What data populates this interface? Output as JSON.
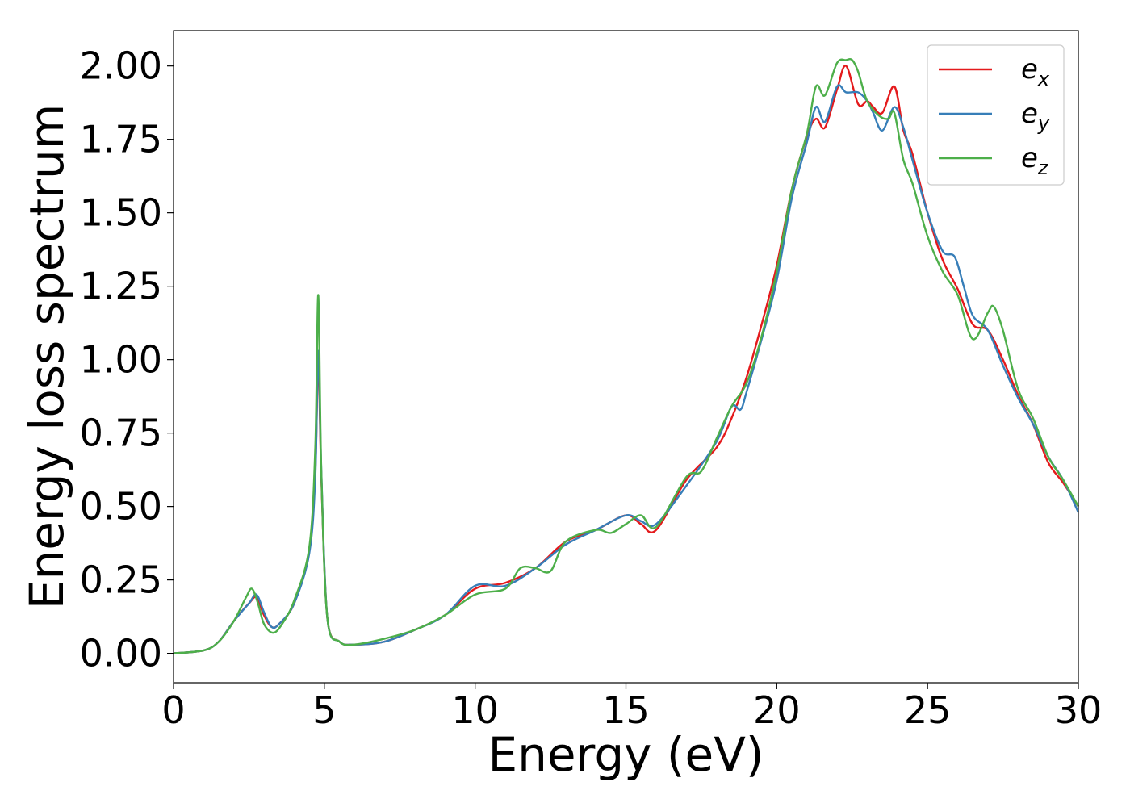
{
  "chart_data": {
    "type": "line",
    "xlabel": "Energy (eV)",
    "ylabel": "Energy loss spectrum",
    "xlim": [
      0,
      30
    ],
    "ylim": [
      -0.1,
      2.12
    ],
    "xticks": [
      0,
      5,
      10,
      15,
      20,
      25,
      30
    ],
    "xtick_labels": [
      "0",
      "5",
      "10",
      "15",
      "20",
      "25",
      "30"
    ],
    "yticks": [
      0.0,
      0.25,
      0.5,
      0.75,
      1.0,
      1.25,
      1.5,
      1.75,
      2.0
    ],
    "ytick_labels": [
      "0.00",
      "0.25",
      "0.50",
      "0.75",
      "1.00",
      "1.25",
      "1.50",
      "1.75",
      "2.00"
    ],
    "grid": false,
    "legend_position": "top-right",
    "series": [
      {
        "name": "e",
        "subscript": "x",
        "color": "#e41a1c",
        "x": [
          0,
          1,
          1.5,
          2,
          2.5,
          2.75,
          3,
          3.25,
          3.5,
          4,
          4.5,
          4.7,
          4.8,
          4.9,
          5.1,
          5.5,
          6,
          7,
          8,
          9,
          10,
          11,
          12,
          13,
          14,
          15,
          15.5,
          16,
          17,
          18,
          18.5,
          19,
          19.5,
          20,
          20.5,
          21,
          21.3,
          21.6,
          22,
          22.3,
          22.7,
          23,
          23.2,
          23.5,
          23.9,
          24.2,
          24.5,
          25,
          25.5,
          26,
          26.5,
          27,
          27.5,
          28,
          28.5,
          29,
          29.5,
          30
        ],
        "y": [
          0.0,
          0.01,
          0.04,
          0.11,
          0.17,
          0.19,
          0.13,
          0.09,
          0.1,
          0.17,
          0.35,
          0.62,
          1.0,
          0.6,
          0.12,
          0.04,
          0.03,
          0.04,
          0.08,
          0.13,
          0.22,
          0.24,
          0.29,
          0.38,
          0.42,
          0.47,
          0.44,
          0.42,
          0.59,
          0.7,
          0.8,
          0.94,
          1.12,
          1.32,
          1.58,
          1.76,
          1.82,
          1.79,
          1.92,
          2.0,
          1.87,
          1.88,
          1.86,
          1.84,
          1.93,
          1.78,
          1.7,
          1.5,
          1.34,
          1.24,
          1.12,
          1.1,
          1.0,
          0.88,
          0.78,
          0.65,
          0.58,
          0.5
        ]
      },
      {
        "name": "e",
        "subscript": "y",
        "color": "#377eb8",
        "x": [
          0,
          1,
          1.5,
          2,
          2.5,
          2.75,
          3,
          3.25,
          3.5,
          4,
          4.5,
          4.7,
          4.8,
          4.9,
          5.1,
          5.5,
          6,
          7,
          8,
          9,
          10,
          11,
          12,
          13,
          14,
          15,
          15.5,
          16,
          17,
          18,
          18.5,
          18.8,
          19,
          19.5,
          20,
          20.5,
          21,
          21.3,
          21.6,
          22,
          22.3,
          22.7,
          23,
          23.2,
          23.5,
          23.9,
          24.2,
          24.5,
          25,
          25.5,
          25.9,
          26.2,
          26.5,
          27,
          27.5,
          28,
          28.5,
          29,
          29.5,
          30
        ],
        "y": [
          0.0,
          0.01,
          0.04,
          0.11,
          0.17,
          0.2,
          0.14,
          0.09,
          0.1,
          0.17,
          0.34,
          0.6,
          1.03,
          0.62,
          0.12,
          0.04,
          0.03,
          0.04,
          0.08,
          0.13,
          0.23,
          0.23,
          0.29,
          0.37,
          0.42,
          0.47,
          0.45,
          0.44,
          0.57,
          0.72,
          0.84,
          0.83,
          0.89,
          1.07,
          1.27,
          1.55,
          1.74,
          1.86,
          1.81,
          1.93,
          1.91,
          1.91,
          1.88,
          1.84,
          1.78,
          1.86,
          1.79,
          1.68,
          1.5,
          1.37,
          1.35,
          1.25,
          1.15,
          1.1,
          0.98,
          0.87,
          0.78,
          0.67,
          0.59,
          0.48
        ]
      },
      {
        "name": "e",
        "subscript": "z",
        "color": "#4daf4a",
        "x": [
          0,
          1,
          1.5,
          2,
          2.4,
          2.6,
          2.8,
          3,
          3.3,
          3.6,
          4,
          4.5,
          4.7,
          4.8,
          4.9,
          5.1,
          5.5,
          6,
          7,
          8,
          9,
          10,
          11,
          11.5,
          12,
          12.5,
          13,
          14,
          14.5,
          15,
          15.5,
          16,
          17,
          17.5,
          18,
          18.5,
          19,
          19.5,
          20,
          20.5,
          21,
          21.3,
          21.6,
          22,
          22.3,
          22.5,
          22.7,
          23,
          23.4,
          23.7,
          23.9,
          24.2,
          24.5,
          25,
          25.5,
          26,
          26.5,
          27,
          27.2,
          27.5,
          28,
          28.5,
          29,
          29.5,
          30
        ],
        "y": [
          0.0,
          0.01,
          0.04,
          0.11,
          0.19,
          0.22,
          0.17,
          0.1,
          0.07,
          0.1,
          0.18,
          0.36,
          0.7,
          1.22,
          0.62,
          0.12,
          0.04,
          0.03,
          0.05,
          0.08,
          0.13,
          0.2,
          0.22,
          0.29,
          0.29,
          0.28,
          0.38,
          0.42,
          0.41,
          0.44,
          0.47,
          0.43,
          0.6,
          0.62,
          0.73,
          0.84,
          0.92,
          1.08,
          1.3,
          1.58,
          1.77,
          1.93,
          1.9,
          2.01,
          2.02,
          2.02,
          1.98,
          1.88,
          1.83,
          1.82,
          1.84,
          1.68,
          1.6,
          1.42,
          1.3,
          1.22,
          1.07,
          1.16,
          1.18,
          1.1,
          0.9,
          0.8,
          0.67,
          0.59,
          0.5
        ]
      }
    ]
  }
}
